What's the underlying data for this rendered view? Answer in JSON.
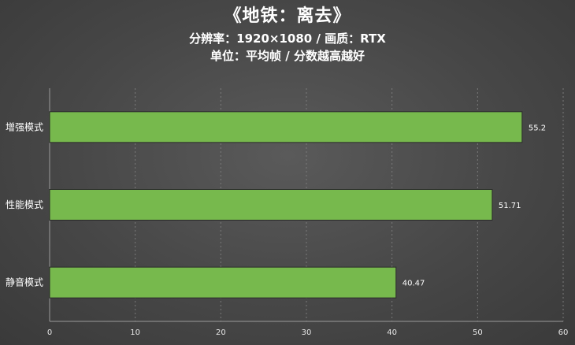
{
  "chart_data": {
    "type": "bar",
    "orientation": "horizontal",
    "title": "《地铁：离去》",
    "subtitle": "分辨率：1920×1080 / 画质：RTX",
    "subtitle2": "单位：平均帧 / 分数越高越好",
    "categories": [
      "增强模式",
      "性能模式",
      "静音模式"
    ],
    "values": [
      55.2,
      51.71,
      40.47
    ],
    "value_labels": [
      "55.2",
      "51.71",
      "40.47"
    ],
    "xlim": [
      0,
      60
    ],
    "xticks": [
      "0",
      "10",
      "20",
      "30",
      "40",
      "50",
      "60"
    ],
    "xlabel": "",
    "ylabel": "",
    "grid": true,
    "bar_color": "#77b94d"
  }
}
